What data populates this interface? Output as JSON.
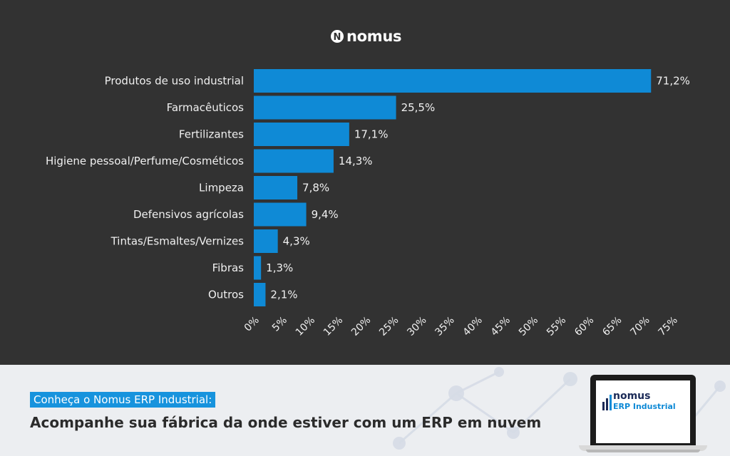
{
  "brand": {
    "name": "nomus",
    "mark": "N"
  },
  "chart_data": {
    "type": "bar",
    "orientation": "horizontal",
    "categories": [
      "Produtos de uso industrial",
      "Farmacêuticos",
      "Fertilizantes",
      "Higiene pessoal/Perfume/Cosméticos",
      "Limpeza",
      "Defensivos agrícolas",
      "Tintas/Esmaltes/Vernizes",
      "Fibras",
      "Outros"
    ],
    "values": [
      71.2,
      25.5,
      17.1,
      14.3,
      7.8,
      9.4,
      4.3,
      1.3,
      2.1
    ],
    "value_labels": [
      "71,2%",
      "25,5%",
      "17,1%",
      "14,3%",
      "7,8%",
      "9,4%",
      "4,3%",
      "1,3%",
      "2,1%"
    ],
    "x_ticks": [
      0,
      5,
      10,
      15,
      20,
      25,
      30,
      35,
      40,
      45,
      50,
      55,
      60,
      65,
      70,
      75
    ],
    "x_tick_labels": [
      "0%",
      "5%",
      "10%",
      "15%",
      "20%",
      "25%",
      "30%",
      "35%",
      "40%",
      "45%",
      "50%",
      "55%",
      "60%",
      "65%",
      "70%",
      "75%"
    ],
    "xlim": [
      0,
      75
    ],
    "grid": false,
    "legend": "none",
    "colors": {
      "bar": "#0f8ad6",
      "background": "#323232",
      "text": "#f0f0f0"
    }
  },
  "banner": {
    "tag": "Conheça o Nomus ERP Industrial:",
    "headline": "Acompanhe sua fábrica da onde estiver com um ERP em nuvem",
    "laptop_logo_line1": "nomus",
    "laptop_logo_line2": "ERP Industrial",
    "colors": {
      "tag_bg": "#1793dd",
      "background": "#eceef1"
    }
  }
}
